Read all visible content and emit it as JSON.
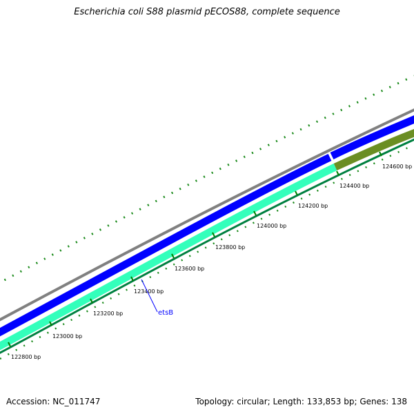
{
  "title": "Escherichia coli S88 plasmid pECOS88, complete sequence",
  "footer": {
    "accession": "Accession: NC_011747",
    "summary": "Topology: circular; Length: 133,853 bp; Genes: 138"
  },
  "colors": {
    "backbone": "#808080",
    "forward_cds": "#0000ff",
    "reverse_cds": "#33ffbb",
    "reverse_cds_dark": "#6b8e23",
    "outer_track": "#008000",
    "ticks": "#008000",
    "label_line": "#0000ff",
    "label_text": "#0000ff"
  },
  "ticks": [
    {
      "label": "122800 bp"
    },
    {
      "label": "123000 bp"
    },
    {
      "label": "123200 bp"
    },
    {
      "label": "123400 bp"
    },
    {
      "label": "123600 bp"
    },
    {
      "label": "123800 bp"
    },
    {
      "label": "124000 bp"
    },
    {
      "label": "124200 bp"
    },
    {
      "label": "124400 bp"
    },
    {
      "label": "124600 bp"
    }
  ],
  "features": [
    {
      "name": "etsB"
    }
  ]
}
